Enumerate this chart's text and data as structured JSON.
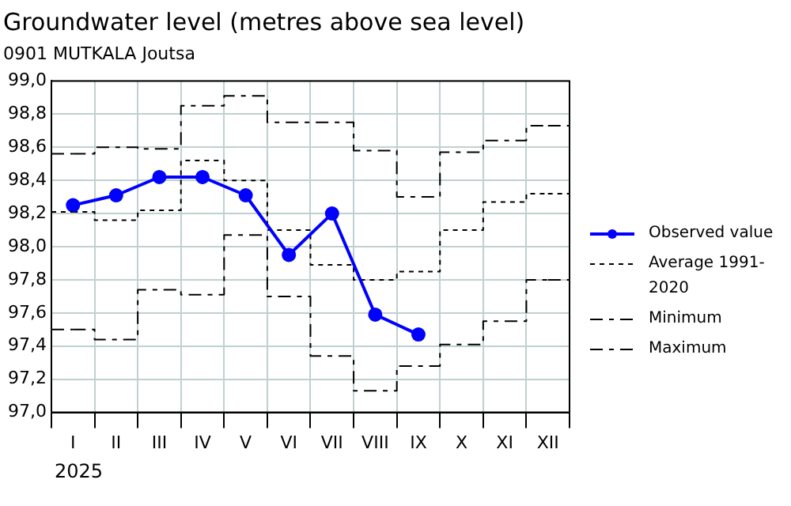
{
  "chart_data": {
    "type": "step",
    "title": "Groundwater level (metres above sea level)",
    "subtitle": "0901 MUTKALA Joutsa",
    "categories": [
      "I",
      "II",
      "III",
      "IV",
      "V",
      "VI",
      "VII",
      "VIII",
      "IX",
      "X",
      "XI",
      "XII"
    ],
    "series": [
      {
        "name": "Observed value",
        "type": "line",
        "color": "#0000ff",
        "marker": "circle",
        "line_style": "solid",
        "values": [
          98.25,
          98.31,
          98.42,
          98.42,
          98.31,
          97.95,
          98.2,
          97.59,
          97.47,
          null,
          null,
          null
        ]
      },
      {
        "name": "Average 1991-2020",
        "type": "step",
        "color": "#000000",
        "line_style": "dotted",
        "values": [
          98.21,
          98.16,
          98.22,
          98.52,
          98.4,
          98.1,
          97.89,
          97.8,
          97.85,
          98.1,
          98.27,
          98.32
        ]
      },
      {
        "name": "Minimum",
        "type": "step",
        "color": "#000000",
        "line_style": "dashed",
        "values": [
          97.5,
          97.44,
          97.74,
          97.71,
          98.07,
          97.7,
          97.34,
          97.13,
          97.28,
          97.41,
          97.55,
          97.8
        ]
      },
      {
        "name": "Maximum",
        "type": "step",
        "color": "#000000",
        "line_style": "dashed",
        "values": [
          98.56,
          98.6,
          98.59,
          98.85,
          98.91,
          98.75,
          98.75,
          98.58,
          98.3,
          98.57,
          98.64,
          98.73
        ]
      }
    ],
    "ylim": [
      97,
      99
    ],
    "yticks": [
      {
        "value": 97,
        "label": "97,0"
      },
      {
        "value": 97.2,
        "label": "97,2"
      },
      {
        "value": 97.4,
        "label": "97,4"
      },
      {
        "value": 97.6,
        "label": "97,6"
      },
      {
        "value": 97.8,
        "label": "97,8"
      },
      {
        "value": 98,
        "label": "98,0"
      },
      {
        "value": 98.2,
        "label": "98,2"
      },
      {
        "value": 98.4,
        "label": "98,4"
      },
      {
        "value": 98.6,
        "label": "98,6"
      },
      {
        "value": 98.8,
        "label": "98,8"
      },
      {
        "value": 99,
        "label": "99,0"
      }
    ],
    "grid": true,
    "legend": "right",
    "annotations": [
      "2025"
    ]
  }
}
